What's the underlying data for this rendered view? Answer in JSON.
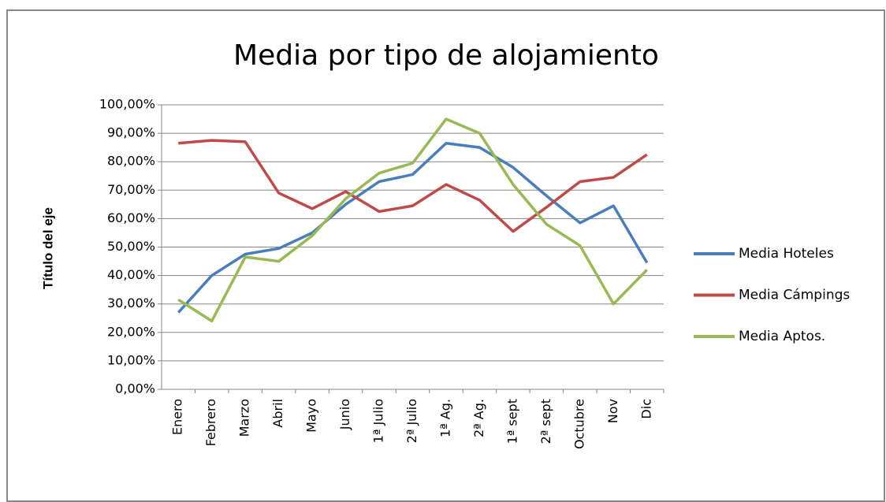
{
  "chart_data": {
    "type": "line",
    "title": "Media por tipo de alojamiento",
    "y_axis_label": "Título del eje",
    "categories": [
      "Enero",
      "Febrero",
      "Marzo",
      "Abril",
      "Mayo",
      "Junio",
      "1ª Julio",
      "2ª Julio",
      "1ª Ag.",
      "2ª Ag.",
      "1ª sept",
      "2ª sept",
      "Octubre",
      "Nov",
      "Dic"
    ],
    "series": [
      {
        "name": "Media Hoteles",
        "color": "#4a7ebb",
        "values": [
          27,
          40,
          47.5,
          49.5,
          55,
          65,
          73,
          75.5,
          86.5,
          85,
          78,
          68,
          58.5,
          64.5,
          44.5
        ]
      },
      {
        "name": "Media Cámpings",
        "color": "#be4b48",
        "values": [
          86.5,
          87.5,
          87,
          69,
          63.5,
          69.5,
          62.5,
          64.5,
          72,
          66.5,
          55.5,
          64,
          73,
          74.5,
          82.5
        ]
      },
      {
        "name": "Media Aptos.",
        "color": "#98b954",
        "values": [
          31.5,
          24,
          46.5,
          45,
          54,
          67,
          76,
          79.5,
          95,
          90,
          72,
          58,
          50.5,
          30,
          42
        ]
      }
    ],
    "ylim": [
      0,
      100
    ],
    "yticks": [
      {
        "value": 0,
        "label": "0,00%"
      },
      {
        "value": 10,
        "label": "10,00%"
      },
      {
        "value": 20,
        "label": "20,00%"
      },
      {
        "value": 30,
        "label": "30,00%"
      },
      {
        "value": 40,
        "label": "40,00%"
      },
      {
        "value": 50,
        "label": "50,00%"
      },
      {
        "value": 60,
        "label": "60,00%"
      },
      {
        "value": 70,
        "label": "70,00%"
      },
      {
        "value": 80,
        "label": "80,00%"
      },
      {
        "value": 90,
        "label": "90,00%"
      },
      {
        "value": 100,
        "label": "100,00%"
      }
    ],
    "grid": true,
    "legend": "right"
  }
}
